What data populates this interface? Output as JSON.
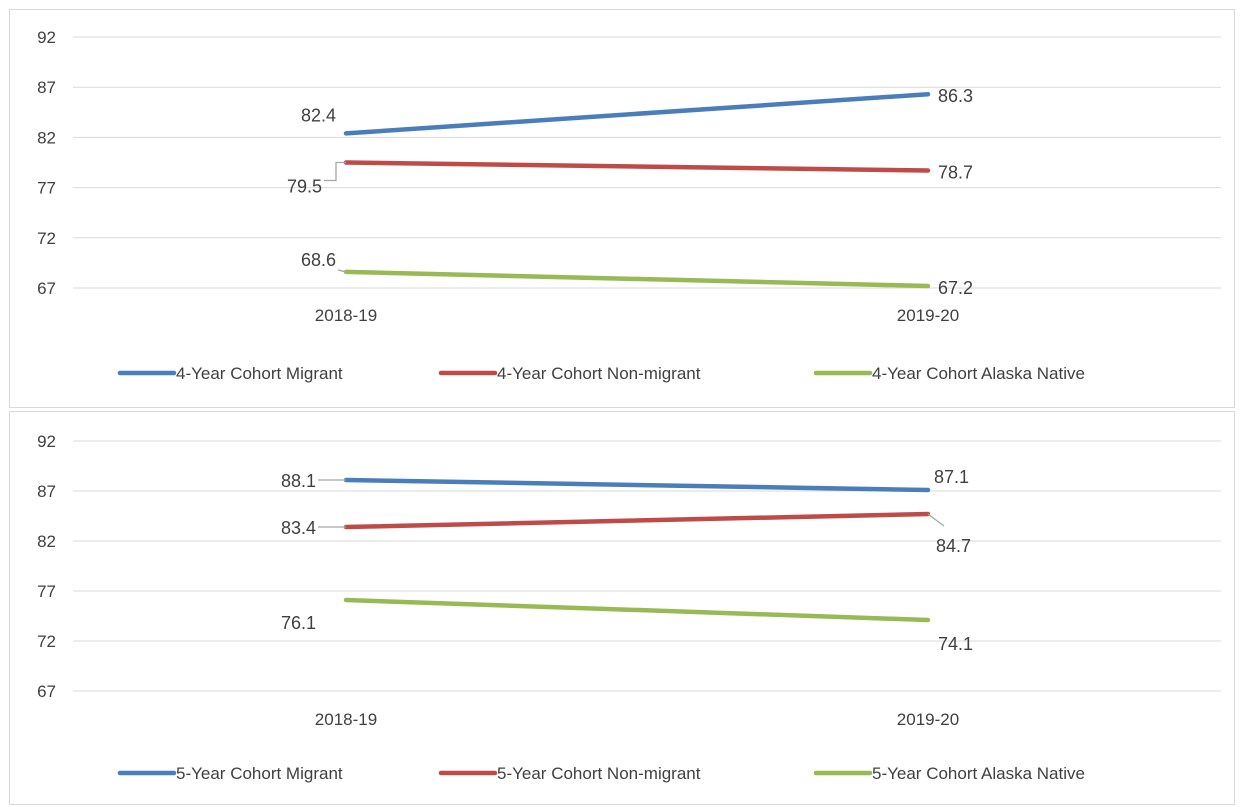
{
  "chart_data": [
    {
      "type": "line",
      "categories": [
        "2018-19",
        "2019-20"
      ],
      "ylim": [
        67,
        92
      ],
      "yticks": [
        92,
        87,
        82,
        77,
        72,
        67
      ],
      "grid": true,
      "legend_position": "bottom",
      "series": [
        {
          "name": "4-Year Cohort Migrant",
          "values": [
            82.4,
            86.3
          ],
          "labels": [
            "82.4",
            "86.3"
          ],
          "color": "#4a7ebb"
        },
        {
          "name": "4-Year Cohort Non-migrant",
          "values": [
            79.5,
            78.7
          ],
          "labels": [
            "79.5",
            "78.7"
          ],
          "color": "#be4b48"
        },
        {
          "name": "4-Year Cohort Alaska Native",
          "values": [
            68.6,
            67.2
          ],
          "labels": [
            "68.6",
            "67.2"
          ],
          "color": "#98b954"
        }
      ]
    },
    {
      "type": "line",
      "categories": [
        "2018-19",
        "2019-20"
      ],
      "ylim": [
        67,
        92
      ],
      "yticks": [
        92,
        87,
        82,
        77,
        72,
        67
      ],
      "grid": true,
      "legend_position": "bottom",
      "series": [
        {
          "name": "5-Year Cohort Migrant",
          "values": [
            88.1,
            87.1
          ],
          "labels": [
            "88.1",
            "87.1"
          ],
          "color": "#4a7ebb"
        },
        {
          "name": "5-Year Cohort Non-migrant",
          "values": [
            83.4,
            84.7
          ],
          "labels": [
            "83.4",
            "84.7"
          ],
          "color": "#be4b48"
        },
        {
          "name": "5-Year Cohort Alaska Native",
          "values": [
            76.1,
            74.1
          ],
          "labels": [
            "76.1",
            "74.1"
          ],
          "color": "#98b954"
        }
      ]
    }
  ]
}
